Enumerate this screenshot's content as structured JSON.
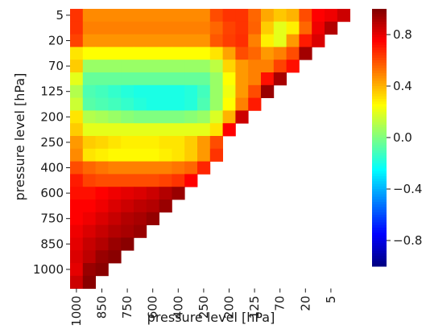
{
  "chart_data": {
    "type": "heatmap",
    "title": "",
    "xlabel": "pressure level [hPa]",
    "ylabel": "pressure level [hPa]",
    "x_tick_labels": [
      "1000",
      "850",
      "750",
      "600",
      "400",
      "250",
      "200",
      "125",
      "70",
      "20",
      "5"
    ],
    "y_tick_labels": [
      "5",
      "20",
      "70",
      "125",
      "200",
      "250",
      "400",
      "600",
      "750",
      "850",
      "1000"
    ],
    "n": 22,
    "colorscale": "jet",
    "vmin": -1,
    "vmax": 1,
    "colorbar_ticks": [
      "0.8",
      "0.4",
      "0.0",
      "−0.4",
      "−0.8"
    ],
    "colorbar_tick_values": [
      0.8,
      0.4,
      0.0,
      -0.4,
      -0.8
    ],
    "mask": "lower-left triangle shown (row + col <= n - 1)",
    "matrix": [
      [
        0.65,
        0.48,
        0.48,
        0.48,
        0.48,
        0.48,
        0.48,
        0.48,
        0.48,
        0.48,
        0.48,
        0.6,
        0.65,
        0.65,
        0.55,
        0.42,
        0.36,
        0.4,
        0.6,
        0.75,
        0.78,
        0.85
      ],
      [
        0.65,
        0.5,
        0.5,
        0.5,
        0.5,
        0.5,
        0.5,
        0.5,
        0.5,
        0.5,
        0.5,
        0.55,
        0.62,
        0.65,
        0.56,
        0.35,
        0.2,
        0.28,
        0.55,
        0.78,
        0.9
      ],
      [
        0.62,
        0.46,
        0.46,
        0.46,
        0.46,
        0.46,
        0.46,
        0.46,
        0.46,
        0.46,
        0.46,
        0.58,
        0.63,
        0.66,
        0.5,
        0.28,
        0.2,
        0.45,
        0.7,
        0.82
      ],
      [
        0.3,
        0.25,
        0.25,
        0.25,
        0.25,
        0.25,
        0.25,
        0.25,
        0.25,
        0.25,
        0.25,
        0.3,
        0.43,
        0.6,
        0.55,
        0.45,
        0.5,
        0.6,
        0.93
      ],
      [
        0.35,
        0.05,
        0.05,
        0.05,
        0.05,
        0.05,
        0.05,
        0.05,
        0.05,
        0.05,
        0.05,
        0.12,
        0.33,
        0.45,
        0.5,
        0.5,
        0.62,
        0.72
      ],
      [
        0.2,
        -0.05,
        -0.05,
        -0.05,
        -0.05,
        -0.05,
        -0.05,
        -0.05,
        -0.05,
        -0.05,
        -0.05,
        0.05,
        0.25,
        0.45,
        0.5,
        0.72,
        0.92
      ],
      [
        0.1,
        -0.1,
        -0.12,
        -0.15,
        -0.18,
        -0.2,
        -0.2,
        -0.2,
        -0.2,
        -0.18,
        -0.12,
        0.05,
        0.22,
        0.45,
        0.6,
        0.95
      ],
      [
        0.15,
        -0.08,
        -0.1,
        -0.12,
        -0.15,
        -0.18,
        -0.2,
        -0.2,
        -0.2,
        -0.18,
        -0.1,
        0.05,
        0.25,
        0.5,
        0.7
      ],
      [
        0.3,
        0.1,
        0.08,
        0.05,
        0.02,
        0.0,
        0.0,
        0.0,
        0.0,
        0.02,
        0.05,
        0.18,
        0.4,
        0.85
      ],
      [
        0.35,
        0.2,
        0.2,
        0.2,
        0.2,
        0.2,
        0.2,
        0.2,
        0.2,
        0.2,
        0.2,
        0.3,
        0.75
      ],
      [
        0.45,
        0.35,
        0.33,
        0.3,
        0.28,
        0.28,
        0.28,
        0.3,
        0.3,
        0.35,
        0.45,
        0.6
      ],
      [
        0.48,
        0.3,
        0.28,
        0.26,
        0.26,
        0.26,
        0.26,
        0.28,
        0.3,
        0.35,
        0.45,
        0.65
      ],
      [
        0.6,
        0.55,
        0.52,
        0.5,
        0.5,
        0.5,
        0.5,
        0.5,
        0.52,
        0.55,
        0.68
      ],
      [
        0.7,
        0.62,
        0.6,
        0.6,
        0.6,
        0.6,
        0.6,
        0.62,
        0.65,
        0.75
      ],
      [
        0.72,
        0.72,
        0.75,
        0.78,
        0.8,
        0.82,
        0.85,
        0.9,
        0.95
      ],
      [
        0.75,
        0.75,
        0.78,
        0.82,
        0.85,
        0.88,
        0.9,
        0.95
      ],
      [
        0.75,
        0.78,
        0.82,
        0.86,
        0.9,
        0.92,
        0.96
      ],
      [
        0.78,
        0.82,
        0.86,
        0.9,
        0.92,
        0.95
      ],
      [
        0.8,
        0.86,
        0.9,
        0.95,
        0.98
      ],
      [
        0.82,
        0.88,
        0.95,
        0.98
      ],
      [
        0.8,
        0.95,
        0.98
      ],
      [
        0.85,
        0.98
      ]
    ]
  }
}
